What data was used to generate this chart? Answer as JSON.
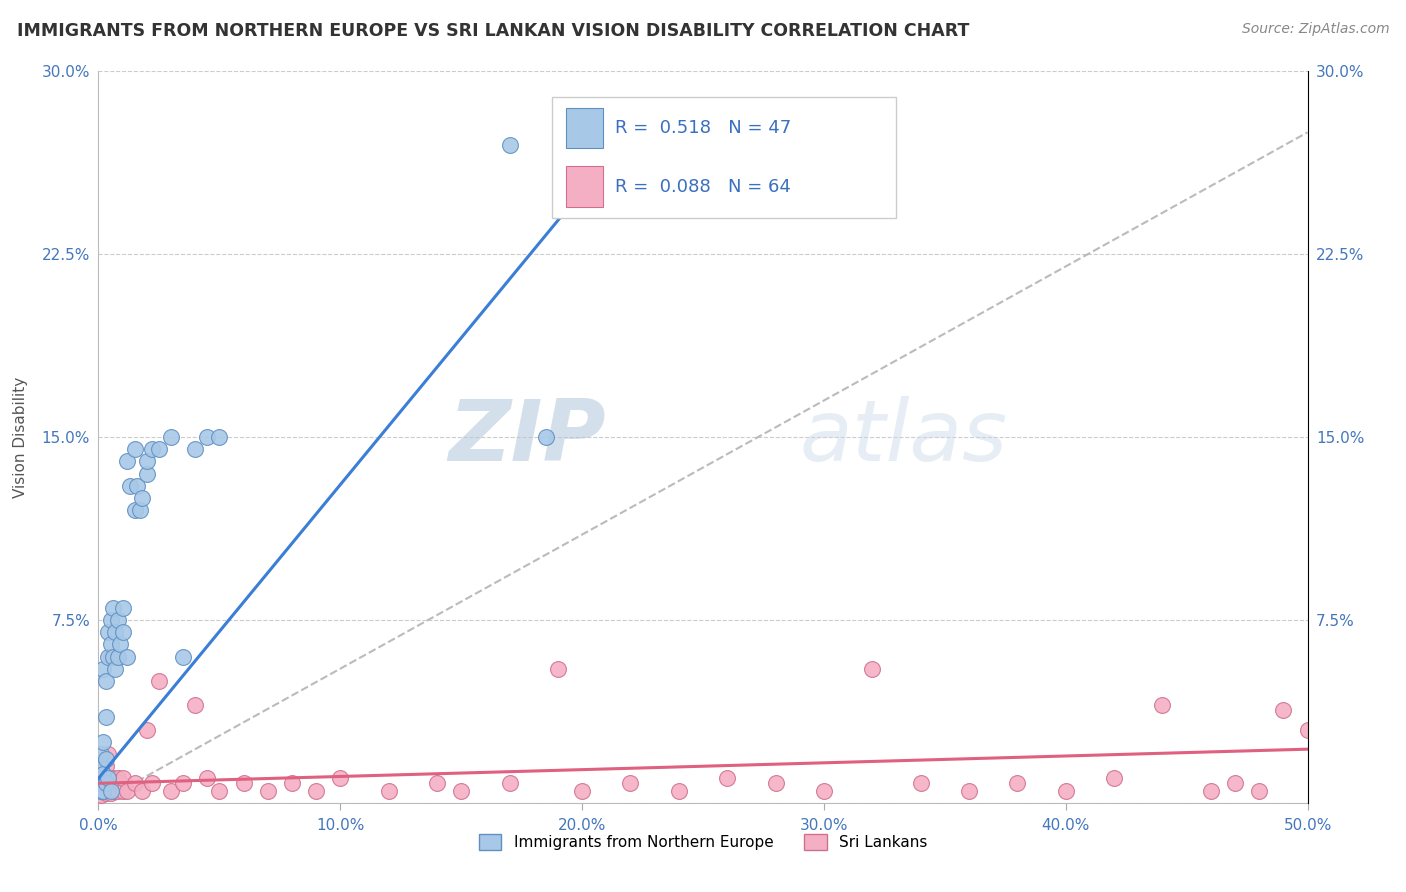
{
  "title": "IMMIGRANTS FROM NORTHERN EUROPE VS SRI LANKAN VISION DISABILITY CORRELATION CHART",
  "source": "Source: ZipAtlas.com",
  "ylabel": "Vision Disability",
  "xlim": [
    0.0,
    0.5
  ],
  "ylim": [
    0.0,
    0.3
  ],
  "xticks": [
    0.0,
    0.1,
    0.2,
    0.3,
    0.4,
    0.5
  ],
  "yticks": [
    0.0,
    0.075,
    0.15,
    0.225,
    0.3
  ],
  "xticklabels": [
    "0.0%",
    "10.0%",
    "20.0%",
    "30.0%",
    "40.0%",
    "50.0%"
  ],
  "yticklabels_left": [
    "",
    "7.5%",
    "15.0%",
    "22.5%",
    "30.0%"
  ],
  "yticklabels_right": [
    "",
    "7.5%",
    "15.0%",
    "22.5%",
    "30.0%"
  ],
  "color_blue": "#a8c8e8",
  "color_pink": "#f4afc4",
  "color_blue_line": "#3a7fd5",
  "color_pink_line": "#e06080",
  "color_dashed": "#bbbbbb",
  "watermark_color": "#c8d8e8",
  "blue_scatter": [
    [
      0.0008,
      0.005
    ],
    [
      0.001,
      0.008
    ],
    [
      0.001,
      0.015
    ],
    [
      0.001,
      0.02
    ],
    [
      0.0015,
      0.01
    ],
    [
      0.002,
      0.005
    ],
    [
      0.002,
      0.012
    ],
    [
      0.002,
      0.025
    ],
    [
      0.002,
      0.055
    ],
    [
      0.003,
      0.008
    ],
    [
      0.003,
      0.018
    ],
    [
      0.003,
      0.035
    ],
    [
      0.003,
      0.05
    ],
    [
      0.004,
      0.01
    ],
    [
      0.004,
      0.06
    ],
    [
      0.004,
      0.07
    ],
    [
      0.005,
      0.005
    ],
    [
      0.005,
      0.065
    ],
    [
      0.005,
      0.075
    ],
    [
      0.006,
      0.06
    ],
    [
      0.006,
      0.08
    ],
    [
      0.007,
      0.055
    ],
    [
      0.007,
      0.07
    ],
    [
      0.008,
      0.06
    ],
    [
      0.008,
      0.075
    ],
    [
      0.009,
      0.065
    ],
    [
      0.01,
      0.07
    ],
    [
      0.01,
      0.08
    ],
    [
      0.012,
      0.06
    ],
    [
      0.012,
      0.14
    ],
    [
      0.013,
      0.13
    ],
    [
      0.015,
      0.12
    ],
    [
      0.015,
      0.145
    ],
    [
      0.016,
      0.13
    ],
    [
      0.017,
      0.12
    ],
    [
      0.018,
      0.125
    ],
    [
      0.02,
      0.135
    ],
    [
      0.02,
      0.14
    ],
    [
      0.022,
      0.145
    ],
    [
      0.025,
      0.145
    ],
    [
      0.03,
      0.15
    ],
    [
      0.035,
      0.06
    ],
    [
      0.04,
      0.145
    ],
    [
      0.045,
      0.15
    ],
    [
      0.05,
      0.15
    ],
    [
      0.17,
      0.27
    ],
    [
      0.185,
      0.15
    ]
  ],
  "pink_scatter": [
    [
      0.0005,
      0.005
    ],
    [
      0.001,
      0.003
    ],
    [
      0.001,
      0.008
    ],
    [
      0.001,
      0.015
    ],
    [
      0.002,
      0.005
    ],
    [
      0.002,
      0.008
    ],
    [
      0.002,
      0.012
    ],
    [
      0.003,
      0.004
    ],
    [
      0.003,
      0.008
    ],
    [
      0.003,
      0.015
    ],
    [
      0.004,
      0.005
    ],
    [
      0.004,
      0.01
    ],
    [
      0.004,
      0.02
    ],
    [
      0.005,
      0.004
    ],
    [
      0.005,
      0.008
    ],
    [
      0.005,
      0.06
    ],
    [
      0.006,
      0.005
    ],
    [
      0.006,
      0.01
    ],
    [
      0.007,
      0.005
    ],
    [
      0.007,
      0.008
    ],
    [
      0.008,
      0.005
    ],
    [
      0.008,
      0.01
    ],
    [
      0.009,
      0.008
    ],
    [
      0.01,
      0.005
    ],
    [
      0.01,
      0.01
    ],
    [
      0.012,
      0.005
    ],
    [
      0.015,
      0.008
    ],
    [
      0.018,
      0.005
    ],
    [
      0.02,
      0.03
    ],
    [
      0.022,
      0.008
    ],
    [
      0.025,
      0.05
    ],
    [
      0.03,
      0.005
    ],
    [
      0.035,
      0.008
    ],
    [
      0.04,
      0.04
    ],
    [
      0.045,
      0.01
    ],
    [
      0.05,
      0.005
    ],
    [
      0.06,
      0.008
    ],
    [
      0.07,
      0.005
    ],
    [
      0.08,
      0.008
    ],
    [
      0.09,
      0.005
    ],
    [
      0.1,
      0.01
    ],
    [
      0.12,
      0.005
    ],
    [
      0.14,
      0.008
    ],
    [
      0.15,
      0.005
    ],
    [
      0.17,
      0.008
    ],
    [
      0.19,
      0.055
    ],
    [
      0.2,
      0.005
    ],
    [
      0.22,
      0.008
    ],
    [
      0.24,
      0.005
    ],
    [
      0.26,
      0.01
    ],
    [
      0.28,
      0.008
    ],
    [
      0.3,
      0.005
    ],
    [
      0.32,
      0.055
    ],
    [
      0.34,
      0.008
    ],
    [
      0.36,
      0.005
    ],
    [
      0.38,
      0.008
    ],
    [
      0.4,
      0.005
    ],
    [
      0.42,
      0.01
    ],
    [
      0.44,
      0.04
    ],
    [
      0.46,
      0.005
    ],
    [
      0.47,
      0.008
    ],
    [
      0.48,
      0.005
    ],
    [
      0.49,
      0.038
    ],
    [
      0.5,
      0.03
    ]
  ],
  "blue_line": [
    [
      0.0,
      0.01
    ],
    [
      0.22,
      0.275
    ]
  ],
  "pink_line": [
    [
      0.0,
      0.008
    ],
    [
      0.5,
      0.022
    ]
  ],
  "dashed_line": [
    [
      0.0,
      0.0
    ],
    [
      0.5,
      0.275
    ]
  ]
}
